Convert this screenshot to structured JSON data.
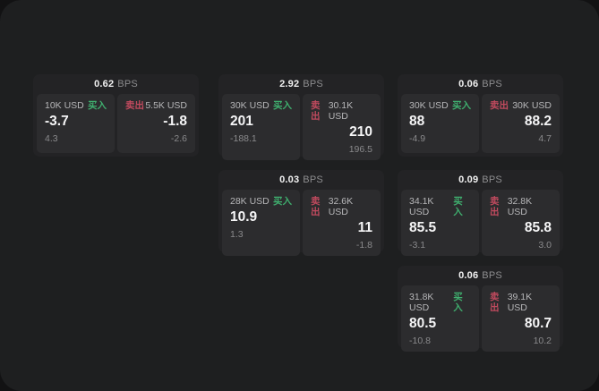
{
  "labels": {
    "bps": "BPS",
    "buy": "买入",
    "sell": "卖出"
  },
  "colors": {
    "buy_green": "#3fae6e",
    "sell_red": "#c04a5e",
    "panel_bg": "#2c2c2e",
    "card_bg": "#232325",
    "page_bg": "#1e1f20"
  },
  "cards": [
    {
      "bps": "0.62",
      "buy": {
        "amount": "10K USD",
        "value": "-3.7",
        "sub": "4.3"
      },
      "sell": {
        "amount": "5.5K USD",
        "value": "-1.8",
        "sub": "-2.6"
      }
    },
    {
      "bps": "2.92",
      "buy": {
        "amount": "30K USD",
        "value": "201",
        "sub": "-188.1"
      },
      "sell": {
        "amount": "30.1K USD",
        "value": "210",
        "sub": "196.5"
      }
    },
    {
      "bps": "0.06",
      "buy": {
        "amount": "30K USD",
        "value": "88",
        "sub": "-4.9"
      },
      "sell": {
        "amount": "30K USD",
        "value": "88.2",
        "sub": "4.7"
      }
    },
    {
      "bps": "0.03",
      "buy": {
        "amount": "28K USD",
        "value": "10.9",
        "sub": "1.3"
      },
      "sell": {
        "amount": "32.6K USD",
        "value": "11",
        "sub": "-1.8"
      }
    },
    {
      "bps": "0.09",
      "buy": {
        "amount": "34.1K USD",
        "value": "85.5",
        "sub": "-3.1"
      },
      "sell": {
        "amount": "32.8K USD",
        "value": "85.8",
        "sub": "3.0"
      }
    },
    {
      "bps": "0.06",
      "buy": {
        "amount": "31.8K USD",
        "value": "80.5",
        "sub": "-10.8"
      },
      "sell": {
        "amount": "39.1K USD",
        "value": "80.7",
        "sub": "10.2"
      }
    }
  ]
}
